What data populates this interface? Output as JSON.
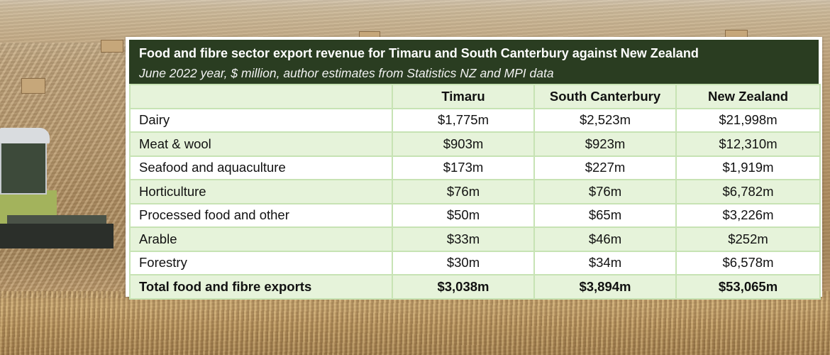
{
  "chart_data": {
    "type": "table",
    "title": "Food and fibre sector export revenue for Timaru and South Canterbury against New Zealand",
    "subtitle": "June 2022 year, $ million, author estimates from Statistics NZ and MPI data",
    "columns": [
      "",
      "Timaru",
      "South Canterbury",
      "New Zealand"
    ],
    "rows": [
      {
        "label": "Dairy",
        "values": [
          "$1,775m",
          "$2,523m",
          "$21,998m"
        ]
      },
      {
        "label": "Meat & wool",
        "values": [
          "$903m",
          "$923m",
          "$12,310m"
        ]
      },
      {
        "label": "Seafood and aquaculture",
        "values": [
          "$173m",
          "$227m",
          "$1,919m"
        ]
      },
      {
        "label": "Horticulture",
        "values": [
          "$76m",
          "$76m",
          "$6,782m"
        ]
      },
      {
        "label": "Processed food and other",
        "values": [
          "$50m",
          "$65m",
          "$3,226m"
        ]
      },
      {
        "label": "Arable",
        "values": [
          "$33m",
          "$46m",
          "$252m"
        ]
      },
      {
        "label": "Forestry",
        "values": [
          "$30m",
          "$34m",
          "$6,578m"
        ]
      }
    ],
    "total": {
      "label": "Total food and fibre exports",
      "values": [
        "$3,038m",
        "$3,894m",
        "$53,065m"
      ]
    },
    "colors": {
      "header_band": "#2a3d21",
      "row_shade": "#e6f3da",
      "grid": "#c7e3b4"
    }
  }
}
